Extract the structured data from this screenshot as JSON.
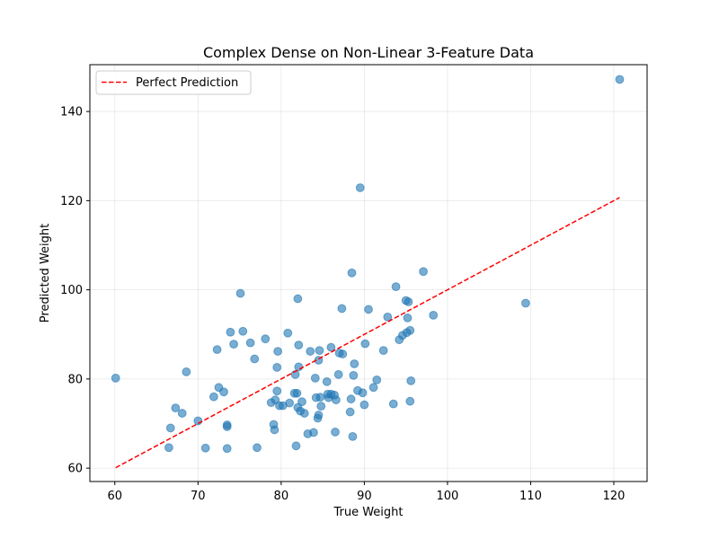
{
  "chart_data": {
    "type": "scatter",
    "title": "Complex Dense on Non-Linear 3-Feature Data",
    "xlabel": "True Weight",
    "ylabel": "Predicted Weight",
    "xlim": [
      57.0,
      124.0
    ],
    "ylim": [
      57.0,
      150.5
    ],
    "xticks": [
      60,
      70,
      80,
      90,
      100,
      110,
      120
    ],
    "yticks": [
      60,
      80,
      100,
      120,
      140
    ],
    "grid": true,
    "legend": {
      "placement": "top-left",
      "entries": [
        "Perfect Prediction"
      ]
    },
    "series": [
      {
        "name": "Perfect Prediction",
        "kind": "line",
        "style": "dashed",
        "color": "#ff0000",
        "x": [
          60.1,
          120.7
        ],
        "y": [
          60.1,
          120.7
        ]
      },
      {
        "name": "Predictions",
        "kind": "scatter",
        "color": "#1f77b4",
        "points": [
          [
            60.1,
            80.2
          ],
          [
            66.5,
            64.6
          ],
          [
            66.7,
            69.0
          ],
          [
            67.3,
            73.5
          ],
          [
            68.1,
            72.3
          ],
          [
            68.6,
            81.6
          ],
          [
            70.0,
            70.6
          ],
          [
            70.9,
            64.5
          ],
          [
            71.9,
            76.0
          ],
          [
            72.3,
            86.6
          ],
          [
            72.5,
            78.1
          ],
          [
            73.1,
            77.1
          ],
          [
            73.5,
            69.3
          ],
          [
            73.5,
            69.7
          ],
          [
            73.5,
            64.4
          ],
          [
            73.9,
            90.5
          ],
          [
            74.3,
            87.8
          ],
          [
            75.1,
            99.2
          ],
          [
            75.4,
            90.7
          ],
          [
            76.3,
            88.1
          ],
          [
            76.8,
            84.5
          ],
          [
            77.1,
            64.6
          ],
          [
            78.1,
            89.0
          ],
          [
            78.8,
            74.7
          ],
          [
            79.1,
            69.8
          ],
          [
            79.2,
            68.6
          ],
          [
            79.3,
            75.3
          ],
          [
            79.5,
            77.3
          ],
          [
            79.5,
            82.6
          ],
          [
            79.6,
            86.2
          ],
          [
            79.8,
            74.0
          ],
          [
            80.2,
            74.0
          ],
          [
            80.8,
            90.3
          ],
          [
            81.0,
            74.6
          ],
          [
            81.6,
            76.8
          ],
          [
            81.7,
            81.0
          ],
          [
            81.8,
            65.0
          ],
          [
            81.9,
            76.8
          ],
          [
            82.0,
            98.0
          ],
          [
            82.0,
            73.6
          ],
          [
            82.1,
            82.7
          ],
          [
            82.1,
            87.6
          ],
          [
            82.3,
            72.8
          ],
          [
            82.5,
            74.9
          ],
          [
            82.8,
            72.3
          ],
          [
            83.2,
            67.7
          ],
          [
            83.5,
            86.2
          ],
          [
            83.9,
            68.0
          ],
          [
            84.1,
            80.2
          ],
          [
            84.2,
            75.8
          ],
          [
            84.4,
            71.2
          ],
          [
            84.5,
            71.9
          ],
          [
            84.5,
            84.2
          ],
          [
            84.6,
            86.4
          ],
          [
            84.7,
            75.9
          ],
          [
            84.8,
            73.9
          ],
          [
            85.5,
            79.4
          ],
          [
            85.6,
            76.6
          ],
          [
            85.7,
            75.8
          ],
          [
            86.0,
            87.1
          ],
          [
            86.0,
            76.6
          ],
          [
            86.4,
            76.4
          ],
          [
            86.5,
            68.1
          ],
          [
            86.6,
            75.3
          ],
          [
            86.9,
            81.0
          ],
          [
            87.0,
            85.8
          ],
          [
            87.3,
            95.8
          ],
          [
            87.4,
            85.6
          ],
          [
            88.3,
            72.6
          ],
          [
            88.4,
            75.5
          ],
          [
            88.5,
            103.8
          ],
          [
            88.6,
            67.1
          ],
          [
            88.7,
            80.8
          ],
          [
            88.8,
            83.4
          ],
          [
            89.2,
            77.4
          ],
          [
            89.5,
            122.9
          ],
          [
            89.8,
            76.9
          ],
          [
            90.0,
            74.2
          ],
          [
            90.1,
            87.9
          ],
          [
            90.5,
            95.6
          ],
          [
            91.1,
            78.1
          ],
          [
            91.5,
            79.8
          ],
          [
            92.3,
            86.4
          ],
          [
            92.8,
            93.9
          ],
          [
            93.5,
            74.4
          ],
          [
            93.8,
            100.7
          ],
          [
            94.2,
            88.8
          ],
          [
            94.6,
            89.8
          ],
          [
            95.0,
            97.6
          ],
          [
            95.1,
            90.4
          ],
          [
            95.2,
            93.7
          ],
          [
            95.3,
            97.3
          ],
          [
            95.5,
            90.9
          ],
          [
            95.5,
            75.0
          ],
          [
            95.6,
            79.6
          ],
          [
            97.1,
            104.1
          ],
          [
            98.3,
            94.3
          ],
          [
            109.4,
            97.0
          ],
          [
            120.7,
            147.2
          ]
        ]
      }
    ]
  }
}
